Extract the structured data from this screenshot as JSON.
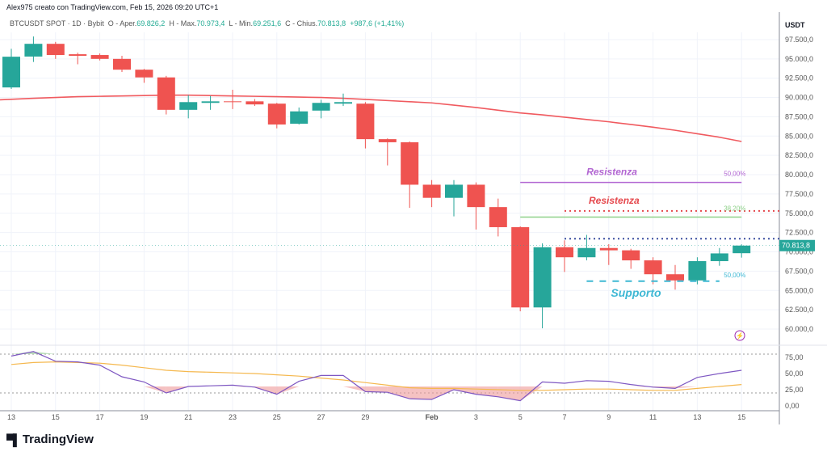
{
  "header": {
    "author_line": "Alex975 creato con TradingView.com, Feb 15, 2026 09:20 UTC+1"
  },
  "symbol_bar": {
    "symbol": "BTCUSDT SPOT · 1D · Bybit",
    "open_label": "O - Aper.",
    "open": "69.826,2",
    "high_label": "H - Max.",
    "high": "70.973,4",
    "low_label": "L - Min.",
    "low": "69.251,6",
    "close_label": "C - Chius.",
    "close": "70.813,8",
    "change": "+987,6 (+1,41%)"
  },
  "logo": {
    "text": "TradingView"
  },
  "colors": {
    "up": "#26a69a",
    "down": "#ef5350",
    "ma": "#f05a5f",
    "rsi": "#7e57c2",
    "rsi_ma": "#f5b84e",
    "resist_purple": "#b266d2",
    "resist_red": "#e5484d",
    "green_level": "#8fd18a",
    "blue_level": "#3b4fa0",
    "support": "#3fb8d4"
  },
  "chart_data": [
    {
      "type": "candlestick",
      "currency": "USDT",
      "ylim": [
        58500,
        99000
      ],
      "y_ticks": [
        "97.500,0",
        "95.000,0",
        "92.500,0",
        "90.000,0",
        "87.500,0",
        "85.000,0",
        "82.500,0",
        "80.000,0",
        "77.500,0",
        "75.000,0",
        "72.500,0",
        "70.000,0",
        "67.500,0",
        "65.000,0",
        "62.500,0",
        "60.000,0"
      ],
      "x_ticks": [
        "13",
        "15",
        "17",
        "19",
        "21",
        "23",
        "25",
        "27",
        "29",
        "Feb",
        "3",
        "5",
        "7",
        "9",
        "11",
        "13",
        "15"
      ],
      "last_price_label": "70.813,8",
      "dates": [
        "Jan 13",
        "Jan 14",
        "Jan 15",
        "Jan 16",
        "Jan 17",
        "Jan 18",
        "Jan 19",
        "Jan 20",
        "Jan 21",
        "Jan 22",
        "Jan 23",
        "Jan 24",
        "Jan 25",
        "Jan 26",
        "Jan 27",
        "Jan 28",
        "Jan 29",
        "Jan 30",
        "Jan 31",
        "Feb 1",
        "Feb 2",
        "Feb 3",
        "Feb 4",
        "Feb 5",
        "Feb 6",
        "Feb 7",
        "Feb 8",
        "Feb 9",
        "Feb 10",
        "Feb 11",
        "Feb 12",
        "Feb 13",
        "Feb 14",
        "Feb 15"
      ],
      "ohlc": [
        [
          91300,
          96300,
          91100,
          95280
        ],
        [
          95300,
          97900,
          94600,
          96950
        ],
        [
          96950,
          97200,
          95000,
          95500
        ],
        [
          95600,
          95800,
          94300,
          95400
        ],
        [
          95500,
          95700,
          94800,
          95000
        ],
        [
          95000,
          95400,
          93300,
          93600
        ],
        [
          93600,
          93700,
          91900,
          92600
        ],
        [
          92600,
          92800,
          87800,
          88400
        ],
        [
          88400,
          90300,
          87300,
          89400
        ],
        [
          89300,
          90200,
          88400,
          89500
        ],
        [
          89500,
          91000,
          88500,
          89400
        ],
        [
          89500,
          89800,
          88900,
          89100
        ],
        [
          89200,
          89300,
          86000,
          86500
        ],
        [
          86600,
          88700,
          86500,
          88200
        ],
        [
          88300,
          89700,
          87300,
          89300
        ],
        [
          89200,
          90500,
          88900,
          89400
        ],
        [
          89200,
          89400,
          83400,
          84600
        ],
        [
          84600,
          84700,
          81200,
          84200
        ],
        [
          84200,
          84300,
          75700,
          78700
        ],
        [
          78700,
          79300,
          75800,
          77000
        ],
        [
          77000,
          79300,
          74600,
          78700
        ],
        [
          78700,
          79000,
          72900,
          75800
        ],
        [
          75800,
          76900,
          72000,
          73200
        ],
        [
          73200,
          73300,
          62300,
          62800
        ],
        [
          62800,
          71100,
          60100,
          70600
        ],
        [
          70600,
          71500,
          67400,
          69300
        ],
        [
          69300,
          72200,
          68900,
          70500
        ],
        [
          70500,
          71000,
          68300,
          70200
        ],
        [
          70200,
          70400,
          67800,
          68900
        ],
        [
          68900,
          69300,
          65800,
          67100
        ],
        [
          67100,
          68300,
          65100,
          66300
        ],
        [
          66300,
          69300,
          65800,
          68800
        ],
        [
          68800,
          70500,
          68200,
          69800
        ],
        [
          69826.2,
          70973.4,
          69251.6,
          70813.8
        ]
      ],
      "moving_average": [
        89700,
        89900,
        90000,
        90100,
        90150,
        90200,
        90250,
        90300,
        90300,
        90250,
        90200,
        90150,
        90100,
        90050,
        90000,
        89900,
        89750,
        89600,
        89450,
        89300,
        89000,
        88700,
        88350,
        88000,
        87750,
        87450,
        87150,
        86850,
        86500,
        86150,
        85750,
        85300,
        84850,
        84300
      ],
      "annotations": [
        {
          "text": "Resistenza",
          "price": 79000,
          "from": "Feb 5",
          "to": "Feb 15",
          "style": "solid",
          "color_key": "resist_purple",
          "pct": "50,00%"
        },
        {
          "text": "Resistenza",
          "price": 75300,
          "from": "Feb 7",
          "to": "axis",
          "style": "dotted",
          "color_key": "resist_red"
        },
        {
          "text": "",
          "price": 74500,
          "from": "Feb 5",
          "to": "Feb 15",
          "style": "solid",
          "color_key": "green_level",
          "pct": "38,20%"
        },
        {
          "text": "",
          "price": 71700,
          "from": "Feb 7",
          "to": "axis",
          "style": "dotted",
          "color_key": "blue_level"
        },
        {
          "text": "Supporto",
          "price": 66200,
          "from": "Feb 8",
          "to": "Feb 14",
          "style": "dashed",
          "color_key": "support",
          "pct": "50,00%"
        }
      ]
    },
    {
      "type": "line",
      "panel": "RSI",
      "ylim": [
        0,
        100
      ],
      "y_ticks": [
        "75,00",
        "50,00",
        "25,00",
        "0,00"
      ],
      "bands": [
        20,
        80
      ],
      "rsi": [
        77,
        84,
        69,
        68,
        63,
        45,
        37,
        20,
        30,
        31,
        32,
        29,
        18,
        38,
        47,
        47,
        22,
        21,
        11,
        10,
        25,
        18,
        14,
        8,
        37,
        35,
        39,
        38,
        33,
        29,
        27,
        44,
        50,
        55
      ],
      "rsi_ma": [
        64,
        67,
        68,
        67,
        66,
        63,
        59,
        55,
        53,
        52,
        51,
        50,
        48,
        46,
        43,
        40,
        36,
        32,
        28,
        27,
        27,
        26,
        25,
        24,
        24,
        25,
        26,
        26,
        25,
        24,
        24,
        27,
        30,
        33
      ]
    }
  ]
}
